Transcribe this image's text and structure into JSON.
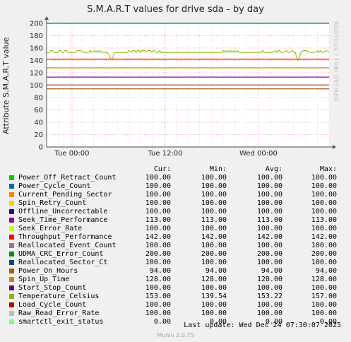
{
  "title": "S.M.A.R.T values for drive sda - by day",
  "ylabel": "Attribute S.M.A.R.T value",
  "watermark": "RRDTOOL / TOBI OETIKER",
  "footer": {
    "last_update": "Last update: Wed Dec 24 07:30:07 2025",
    "munin": "Munin 2.0.75"
  },
  "legend_headers": {
    "cur": "Cur:",
    "min": "Min:",
    "avg": "Avg:",
    "max": "Max:"
  },
  "chart_data": {
    "type": "line",
    "title": "S.M.A.R.T values for drive sda - by day",
    "ylabel": "Attribute S.M.A.R.T value",
    "ylim": [
      0,
      200
    ],
    "yticks": [
      "0",
      "20",
      "40",
      "60",
      "80",
      "100",
      "120",
      "140",
      "160",
      "180",
      "200"
    ],
    "xticks": [
      {
        "label": "Tue 00:00",
        "t": 0.09
      },
      {
        "label": "Tue 12:00",
        "t": 0.42
      },
      {
        "label": "Wed 00:00",
        "t": 0.75
      }
    ],
    "grid": true,
    "series": [
      {
        "name": "Power_Off_Retract_Count",
        "color": "#00cc00",
        "cur": "100.00",
        "min": "100.00",
        "avg": "100.00",
        "max": "100.00",
        "value": 100
      },
      {
        "name": "Power_Cycle_Count",
        "color": "#0066b3",
        "cur": "100.00",
        "min": "100.00",
        "avg": "100.00",
        "max": "100.00",
        "value": 100
      },
      {
        "name": "Current_Pending_Sector",
        "color": "#ff8000",
        "cur": "100.00",
        "min": "100.00",
        "avg": "100.00",
        "max": "100.00",
        "value": 100
      },
      {
        "name": "Spin_Retry_Count",
        "color": "#ffcc00",
        "cur": "100.00",
        "min": "100.00",
        "avg": "100.00",
        "max": "100.00",
        "value": 100
      },
      {
        "name": "Offline_Uncorrectable",
        "color": "#330099",
        "cur": "100.00",
        "min": "100.00",
        "avg": "100.00",
        "max": "100.00",
        "value": 100
      },
      {
        "name": "Seek_Time_Performance",
        "color": "#990099",
        "cur": "113.00",
        "min": "113.00",
        "avg": "113.00",
        "max": "113.00",
        "value": 113
      },
      {
        "name": "Seek_Error_Rate",
        "color": "#ccff00",
        "cur": "100.00",
        "min": "100.00",
        "avg": "100.00",
        "max": "100.00",
        "value": 100
      },
      {
        "name": "Throughput_Performance",
        "color": "#ff0000",
        "cur": "142.00",
        "min": "142.00",
        "avg": "142.00",
        "max": "142.00",
        "value": 142
      },
      {
        "name": "Reallocated_Event_Count",
        "color": "#808080",
        "cur": "100.00",
        "min": "100.00",
        "avg": "100.00",
        "max": "100.00",
        "value": 100
      },
      {
        "name": "UDMA_CRC_Error_Count",
        "color": "#008f00",
        "cur": "200.00",
        "min": "200.00",
        "avg": "200.00",
        "max": "200.00",
        "value": 200
      },
      {
        "name": "Reallocated_Sector_Ct",
        "color": "#00487d",
        "cur": "100.00",
        "min": "100.00",
        "avg": "100.00",
        "max": "100.00",
        "value": 100
      },
      {
        "name": "Power_On_Hours",
        "color": "#b35a00",
        "cur": "94.00",
        "min": "94.00",
        "avg": "94.00",
        "max": "94.00",
        "value": 94
      },
      {
        "name": "Spin_Up_Time",
        "color": "#b38f00",
        "cur": "128.00",
        "min": "128.00",
        "avg": "128.00",
        "max": "128.00",
        "value": 128
      },
      {
        "name": "Start_Stop_Count",
        "color": "#6b006b",
        "cur": "100.00",
        "min": "100.00",
        "avg": "100.00",
        "max": "100.00",
        "value": 100
      },
      {
        "name": "Temperature_Celsius",
        "color": "#8fb300",
        "cur": "153.00",
        "min": "139.54",
        "avg": "153.22",
        "max": "157.00",
        "value": 153
      },
      {
        "name": "Load_Cycle_Count",
        "color": "#b30000",
        "cur": "100.00",
        "min": "100.00",
        "avg": "100.00",
        "max": "100.00",
        "value": 100
      },
      {
        "name": "Raw_Read_Error_Rate",
        "color": "#bebebe",
        "cur": "100.00",
        "min": "100.00",
        "avg": "100.00",
        "max": "100.00",
        "value": 100
      },
      {
        "name": "smartctl_exit_status",
        "color": "#80ff80",
        "cur": "0.00",
        "min": "0.00",
        "avg": "0.00",
        "max": "0.00",
        "value": 0
      }
    ],
    "temperature_points": [
      [
        0.0,
        153
      ],
      [
        0.01,
        153
      ],
      [
        0.015,
        156
      ],
      [
        0.02,
        156
      ],
      [
        0.025,
        153
      ],
      [
        0.04,
        153
      ],
      [
        0.045,
        156
      ],
      [
        0.05,
        156
      ],
      [
        0.055,
        153
      ],
      [
        0.06,
        153
      ],
      [
        0.065,
        156
      ],
      [
        0.07,
        156
      ],
      [
        0.075,
        153
      ],
      [
        0.09,
        153
      ],
      [
        0.1,
        153
      ],
      [
        0.11,
        156
      ],
      [
        0.12,
        156
      ],
      [
        0.13,
        153
      ],
      [
        0.15,
        153
      ],
      [
        0.155,
        156
      ],
      [
        0.16,
        153
      ],
      [
        0.17,
        156
      ],
      [
        0.175,
        153
      ],
      [
        0.18,
        156
      ],
      [
        0.185,
        153
      ],
      [
        0.19,
        156
      ],
      [
        0.195,
        153
      ],
      [
        0.215,
        153
      ],
      [
        0.225,
        145
      ],
      [
        0.23,
        141
      ],
      [
        0.235,
        145
      ],
      [
        0.24,
        153
      ],
      [
        0.27,
        153
      ],
      [
        0.285,
        153
      ],
      [
        0.29,
        156
      ],
      [
        0.3,
        153
      ],
      [
        0.305,
        156
      ],
      [
        0.312,
        156
      ],
      [
        0.317,
        153
      ],
      [
        0.322,
        156
      ],
      [
        0.327,
        156
      ],
      [
        0.332,
        153
      ],
      [
        0.337,
        156
      ],
      [
        0.342,
        156
      ],
      [
        0.347,
        156
      ],
      [
        0.352,
        153
      ],
      [
        0.357,
        156
      ],
      [
        0.362,
        156
      ],
      [
        0.367,
        156
      ],
      [
        0.372,
        153
      ],
      [
        0.377,
        156
      ],
      [
        0.382,
        156
      ],
      [
        0.387,
        153
      ],
      [
        0.395,
        153
      ],
      [
        0.4,
        156
      ],
      [
        0.405,
        153
      ],
      [
        0.41,
        153
      ],
      [
        0.62,
        153
      ],
      [
        0.625,
        156
      ],
      [
        0.63,
        153
      ],
      [
        0.635,
        156
      ],
      [
        0.64,
        153
      ],
      [
        0.645,
        156
      ],
      [
        0.65,
        153
      ],
      [
        0.655,
        156
      ],
      [
        0.66,
        153
      ],
      [
        0.665,
        156
      ],
      [
        0.67,
        153
      ],
      [
        0.675,
        156
      ],
      [
        0.68,
        153
      ],
      [
        0.76,
        153
      ],
      [
        0.765,
        156
      ],
      [
        0.77,
        153
      ],
      [
        0.8,
        153
      ],
      [
        0.81,
        156
      ],
      [
        0.815,
        153
      ],
      [
        0.82,
        156
      ],
      [
        0.825,
        156
      ],
      [
        0.83,
        153
      ],
      [
        0.84,
        153
      ],
      [
        0.85,
        156
      ],
      [
        0.855,
        153
      ],
      [
        0.86,
        153
      ],
      [
        0.87,
        156
      ],
      [
        0.875,
        153
      ],
      [
        0.88,
        153
      ],
      [
        0.885,
        145
      ],
      [
        0.89,
        140
      ],
      [
        0.895,
        145
      ],
      [
        0.9,
        153
      ],
      [
        0.91,
        156
      ],
      [
        0.92,
        156
      ],
      [
        0.935,
        153
      ],
      [
        0.95,
        153
      ],
      [
        0.96,
        156
      ],
      [
        0.965,
        153
      ],
      [
        0.97,
        156
      ],
      [
        0.975,
        153
      ],
      [
        0.98,
        153
      ],
      [
        0.99,
        156
      ],
      [
        1.0,
        153
      ]
    ]
  }
}
